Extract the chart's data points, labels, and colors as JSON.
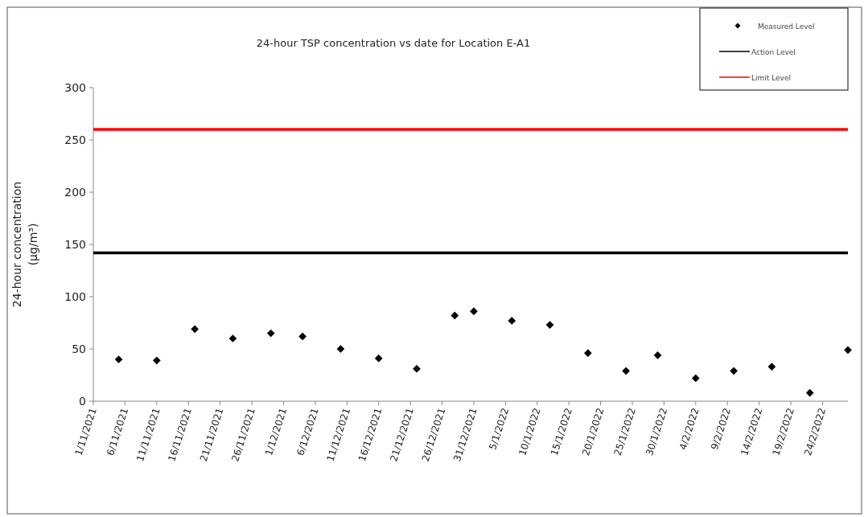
{
  "chart_data": {
    "type": "scatter",
    "title": "24-hour TSP concentration vs date for Location E-A1",
    "ylabel": "24-hour concentration\n(µg/m³)",
    "x": [
      "2021-11-05",
      "2021-11-11",
      "2021-11-17",
      "2021-11-23",
      "2021-11-29",
      "2021-12-04",
      "2021-12-10",
      "2021-12-16",
      "2021-12-22",
      "2021-12-28",
      "2021-12-31",
      "2022-01-06",
      "2022-01-12",
      "2022-01-18",
      "2022-01-24",
      "2022-01-29",
      "2022-02-04",
      "2022-02-10",
      "2022-02-16",
      "2022-02-22",
      "2022-02-28"
    ],
    "series": [
      {
        "name": "Measured Level",
        "color": "#000000",
        "values": [
          40,
          39,
          69,
          60,
          65,
          62,
          50,
          41,
          31,
          82,
          86,
          77,
          73,
          46,
          29,
          44,
          22,
          29,
          33,
          8,
          49
        ]
      }
    ],
    "marker": "diamond",
    "legend": "top right",
    "grid": false,
    "ref_lines": [
      {
        "axis": "y",
        "value": 142,
        "label": "Action Level",
        "color": "#000000"
      },
      {
        "axis": "y",
        "value": 260,
        "label": "Limit Level",
        "color": "#ff0000"
      }
    ],
    "ylim": [
      0,
      300
    ],
    "yticks": [
      0,
      50,
      100,
      150,
      200,
      250,
      300
    ],
    "xlim": [
      "2021-11-01",
      "2022-02-28"
    ],
    "xticks": [
      {
        "value": "2021-11-01",
        "label": "1/11/2021"
      },
      {
        "value": "2021-11-06",
        "label": "6/11/2021"
      },
      {
        "value": "2021-11-11",
        "label": "11/11/2021"
      },
      {
        "value": "2021-11-16",
        "label": "16/11/2021"
      },
      {
        "value": "2021-11-21",
        "label": "21/11/2021"
      },
      {
        "value": "2021-11-26",
        "label": "26/11/2021"
      },
      {
        "value": "2021-12-01",
        "label": "1/12/2021"
      },
      {
        "value": "2021-12-06",
        "label": "6/12/2021"
      },
      {
        "value": "2021-12-11",
        "label": "11/12/2021"
      },
      {
        "value": "2021-12-16",
        "label": "16/12/2021"
      },
      {
        "value": "2021-12-21",
        "label": "21/12/2021"
      },
      {
        "value": "2021-12-26",
        "label": "26/12/2021"
      },
      {
        "value": "2021-12-31",
        "label": "31/12/2021"
      },
      {
        "value": "2022-01-05",
        "label": "5/1/2022"
      },
      {
        "value": "2022-01-10",
        "label": "10/1/2022"
      },
      {
        "value": "2022-01-15",
        "label": "15/1/2022"
      },
      {
        "value": "2022-01-20",
        "label": "20/1/2022"
      },
      {
        "value": "2022-01-25",
        "label": "25/1/2022"
      },
      {
        "value": "2022-01-30",
        "label": "30/1/2022"
      },
      {
        "value": "2022-02-04",
        "label": "4/2/2022"
      },
      {
        "value": "2022-02-09",
        "label": "9/2/2022"
      },
      {
        "value": "2022-02-14",
        "label": "14/2/2022"
      },
      {
        "value": "2022-02-19",
        "label": "19/2/2022"
      },
      {
        "value": "2022-02-24",
        "label": "24/2/2022"
      }
    ]
  }
}
